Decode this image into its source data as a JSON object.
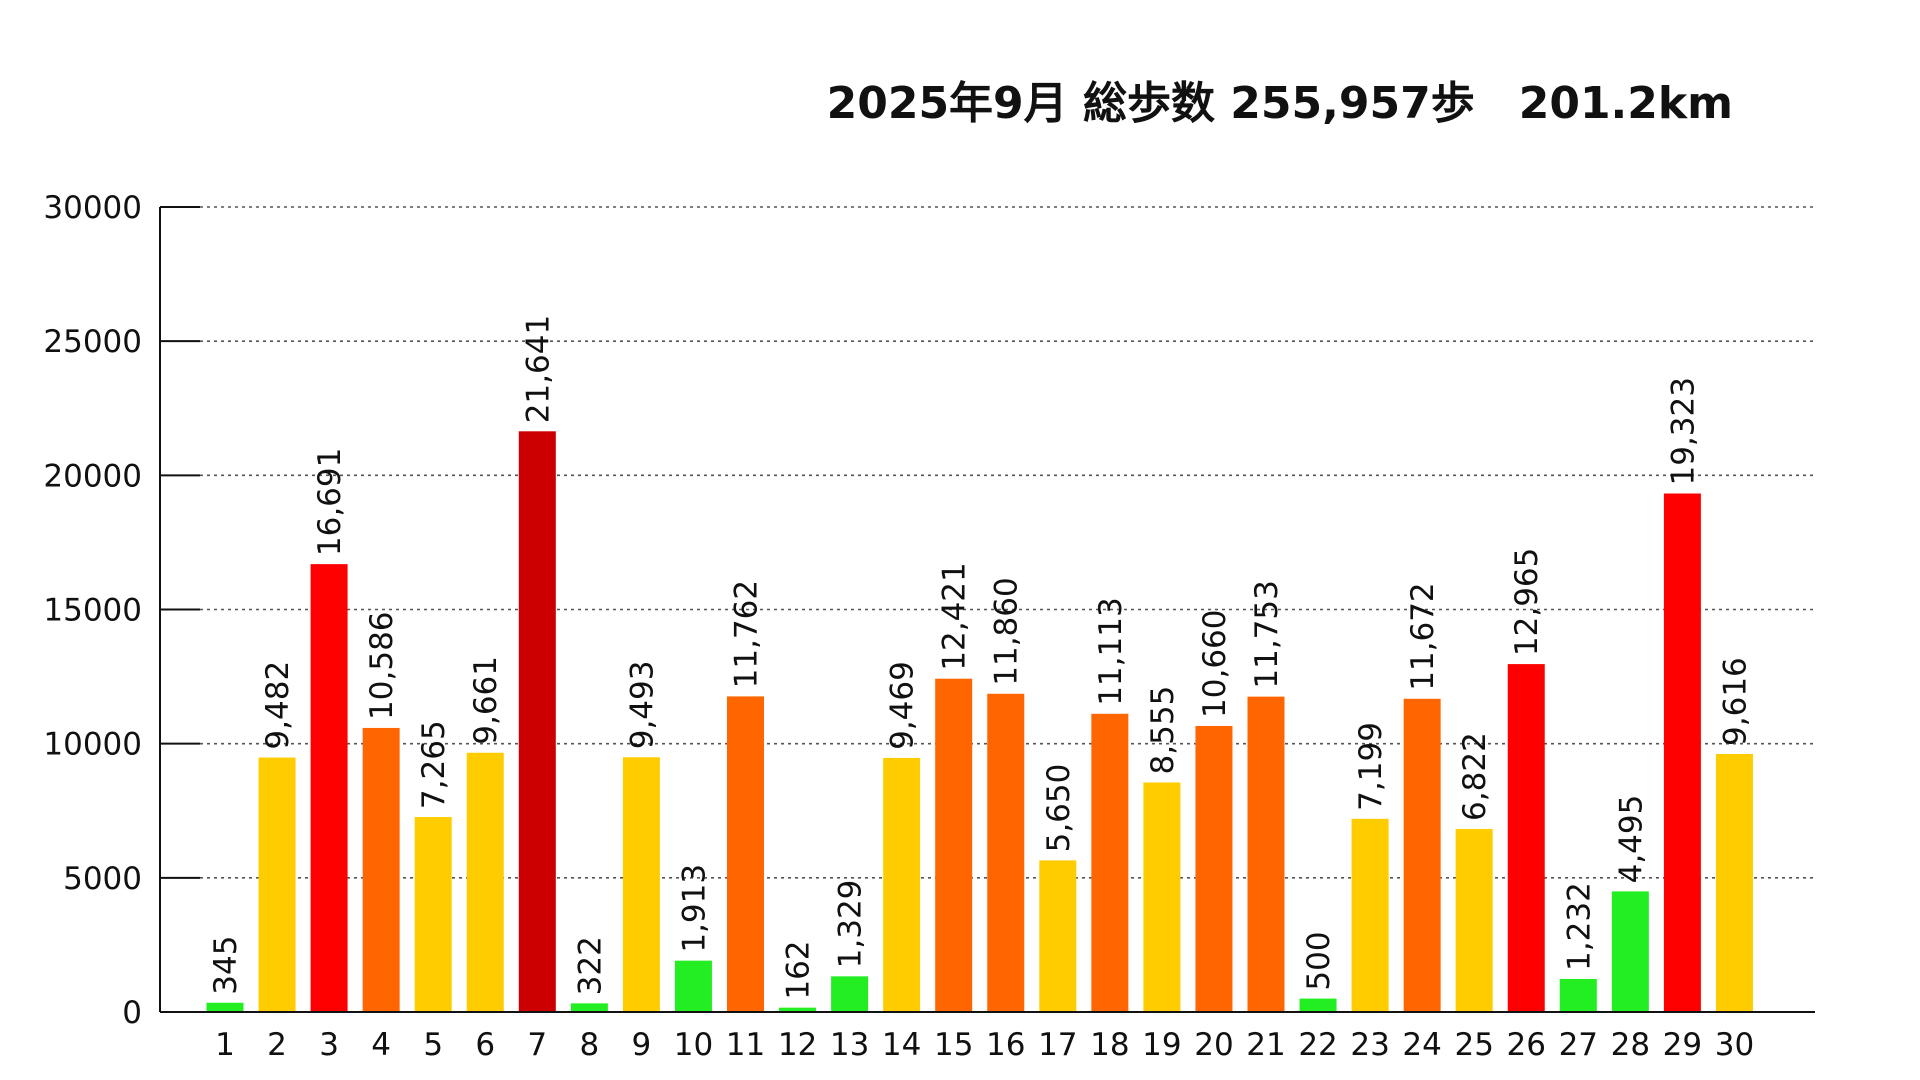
{
  "chart_data": {
    "type": "bar",
    "title": "2025年9月 総歩数 255,957歩　201.2km",
    "xlabel": "",
    "ylabel": "",
    "ylim": [
      0,
      30000
    ],
    "yticks": [
      "0",
      "5000",
      "10000",
      "15000",
      "20000",
      "25000",
      "30000"
    ],
    "grid": true,
    "categories": [
      "1",
      "2",
      "3",
      "4",
      "5",
      "6",
      "7",
      "8",
      "9",
      "10",
      "11",
      "12",
      "13",
      "14",
      "15",
      "16",
      "17",
      "18",
      "19",
      "20",
      "21",
      "22",
      "23",
      "24",
      "25",
      "26",
      "27",
      "28",
      "29",
      "30"
    ],
    "values": [
      345,
      9482,
      16691,
      10586,
      7265,
      9661,
      21641,
      322,
      9493,
      1913,
      11762,
      162,
      1329,
      9469,
      12421,
      11860,
      5650,
      11113,
      8555,
      10660,
      11753,
      500,
      7199,
      11672,
      6822,
      12965,
      1232,
      4495,
      19323,
      9616
    ],
    "value_labels": [
      "345",
      "9,482",
      "16,691",
      "10,586",
      "7,265",
      "9,661",
      "21,641",
      "322",
      "9,493",
      "1,913",
      "11,762",
      "162",
      "1,329",
      "9,469",
      "12,421",
      "11,860",
      "5,650",
      "11,113",
      "8,555",
      "10,660",
      "11,753",
      "500",
      "7,199",
      "11,672",
      "6,822",
      "12,965",
      "1,232",
      "4,495",
      "19,323",
      "9,616"
    ],
    "bar_colors": [
      "#22ee22",
      "#ffcc00",
      "#ff0000",
      "#ff6600",
      "#ffcc00",
      "#ffcc00",
      "#cc0000",
      "#22ee22",
      "#ffcc00",
      "#22ee22",
      "#ff6600",
      "#22ee22",
      "#22ee22",
      "#ffcc00",
      "#ff6600",
      "#ff6600",
      "#ffcc00",
      "#ff6600",
      "#ffcc00",
      "#ff6600",
      "#ff6600",
      "#22ee22",
      "#ffcc00",
      "#ff6600",
      "#ffcc00",
      "#ff0000",
      "#22ee22",
      "#22ee22",
      "#ff0000",
      "#ffcc00"
    ]
  }
}
